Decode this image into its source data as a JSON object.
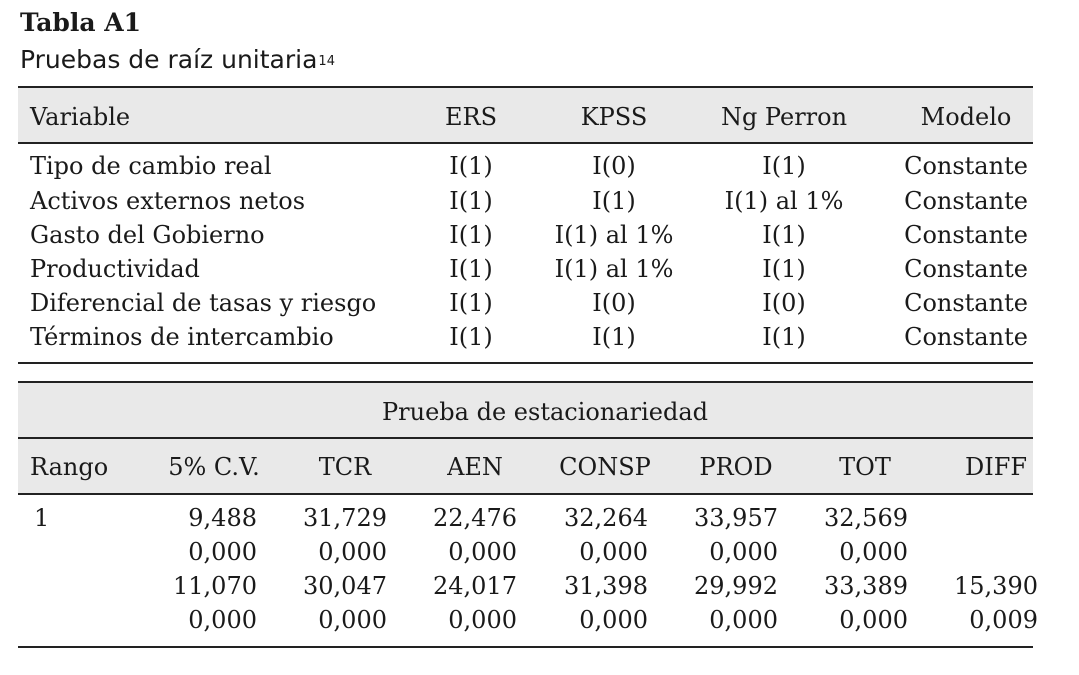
{
  "title": "Tabla A1",
  "subtitle": "Pruebas de raíz unitaria",
  "subtitle_footnote": "14",
  "table1": {
    "headers": [
      "Variable",
      "ERS",
      "KPSS",
      "Ng Perron",
      "Modelo"
    ],
    "rows": [
      [
        "Tipo de cambio real",
        "I(1)",
        "I(0)",
        "I(1)",
        "Constante"
      ],
      [
        "Activos externos netos",
        "I(1)",
        "I(1)",
        "I(1) al 1%",
        "Constante"
      ],
      [
        "Gasto del Gobierno",
        "I(1)",
        "I(1) al 1%",
        "I(1)",
        "Constante"
      ],
      [
        "Productividad",
        "I(1)",
        "I(1) al 1%",
        "I(1)",
        "Constante"
      ],
      [
        "Diferencial de tasas y riesgo",
        "I(1)",
        "I(0)",
        "I(0)",
        "Constante"
      ],
      [
        "Términos de intercambio",
        "I(1)",
        "I(1)",
        "I(1)",
        "Constante"
      ]
    ]
  },
  "table2": {
    "title": "Prueba de estacionariedad",
    "headers": [
      "Rango",
      "5% C.V.",
      "TCR",
      "AEN",
      "CONSP",
      "PROD",
      "TOT",
      "DIFF"
    ],
    "rows": [
      [
        "1",
        "9,488",
        "31,729",
        "22,476",
        "32,264",
        "33,957",
        "32,569",
        ""
      ],
      [
        "",
        "0,000",
        "0,000",
        "0,000",
        "0,000",
        "0,000",
        "0,000",
        ""
      ],
      [
        "",
        "11,070",
        "30,047",
        "24,017",
        "31,398",
        "29,992",
        "33,389",
        "15,390"
      ],
      [
        "",
        "0,000",
        "0,000",
        "0,000",
        "0,000",
        "0,000",
        "0,000",
        "0,009"
      ]
    ]
  },
  "colors": {
    "panel": "#e9e9e9",
    "rule": "#222222",
    "text": "#1a1a1a"
  }
}
